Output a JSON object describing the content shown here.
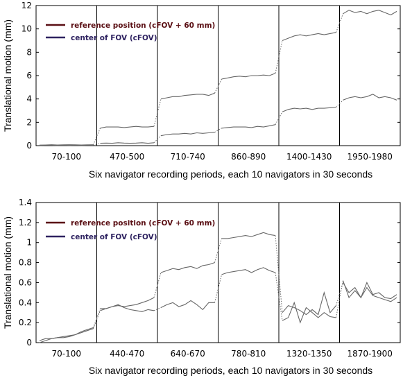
{
  "chart_data": [
    {
      "type": "line",
      "ylabel": "Translational motion (mm)",
      "xlabel": "Six navigator recording periods, each 10 navigators in 30 seconds",
      "ylim": [
        0,
        12
      ],
      "yticks": [
        "0",
        "2",
        "4",
        "6",
        "8",
        "10",
        "12"
      ],
      "categories": [
        "70-100",
        "470-500",
        "710-740",
        "860-890",
        "1400-1430",
        "1950-1980"
      ],
      "points_per_period": 10,
      "dotted_connectors": true,
      "legend_position": "top-left",
      "series": [
        {
          "name": "reference position (cFOV + 60 mm)",
          "color": "#5a0f14",
          "values": [
            [
              0.05,
              0.06,
              0.08,
              0.06,
              0.07,
              0.08,
              0.07,
              0.06,
              0.07,
              0.08
            ],
            [
              1.5,
              1.6,
              1.6,
              1.6,
              1.55,
              1.6,
              1.65,
              1.6,
              1.6,
              1.65
            ],
            [
              4.0,
              4.1,
              4.2,
              4.2,
              4.3,
              4.35,
              4.4,
              4.4,
              4.3,
              4.5
            ],
            [
              5.7,
              5.8,
              5.9,
              5.95,
              5.9,
              6.0,
              6.0,
              6.05,
              6.0,
              6.2
            ],
            [
              9.0,
              9.2,
              9.4,
              9.5,
              9.4,
              9.5,
              9.6,
              9.5,
              9.6,
              9.7
            ],
            [
              11.3,
              11.6,
              11.4,
              11.5,
              11.3,
              11.5,
              11.6,
              11.4,
              11.2,
              11.5
            ]
          ]
        },
        {
          "name": "center of FOV (cFOV)",
          "color": "#2e2260",
          "values": [
            [
              0.02,
              0.03,
              0.03,
              0.02,
              0.03,
              0.02,
              0.03,
              0.02,
              0.03,
              0.03
            ],
            [
              0.2,
              0.22,
              0.2,
              0.25,
              0.22,
              0.2,
              0.22,
              0.25,
              0.2,
              0.25
            ],
            [
              0.85,
              0.95,
              1.0,
              1.0,
              1.05,
              1.0,
              1.1,
              1.05,
              1.1,
              1.15
            ],
            [
              1.5,
              1.55,
              1.6,
              1.6,
              1.6,
              1.55,
              1.65,
              1.6,
              1.7,
              1.8
            ],
            [
              2.9,
              3.1,
              3.2,
              3.15,
              3.2,
              3.1,
              3.2,
              3.2,
              3.25,
              3.3
            ],
            [
              3.9,
              4.1,
              4.2,
              4.1,
              4.2,
              4.4,
              4.1,
              4.2,
              4.1,
              3.9
            ]
          ]
        }
      ]
    },
    {
      "type": "line",
      "ylabel": "Translational motion (mm)",
      "xlabel": "Six navigator recording periods, each 10 navigators in 30 seconds",
      "ylim": [
        0,
        1.4
      ],
      "yticks": [
        "0",
        "0.2",
        "0.4",
        "0.6",
        "0.8",
        "1",
        "1.2",
        "1.4"
      ],
      "categories": [
        "70-100",
        "440-470",
        "640-670",
        "780-810",
        "1320-1350",
        "1870-1900"
      ],
      "points_per_period": 10,
      "dotted_connectors": true,
      "legend_position": "top-left",
      "series": [
        {
          "name": "reference position (cFOV + 60 mm)",
          "color": "#5a0f14",
          "values": [
            [
              0.0,
              0.02,
              0.04,
              0.05,
              0.05,
              0.06,
              0.08,
              0.1,
              0.12,
              0.14
            ],
            [
              0.32,
              0.34,
              0.36,
              0.37,
              0.36,
              0.37,
              0.38,
              0.4,
              0.42,
              0.45
            ],
            [
              0.7,
              0.72,
              0.74,
              0.73,
              0.75,
              0.76,
              0.74,
              0.77,
              0.78,
              0.8
            ],
            [
              1.04,
              1.04,
              1.05,
              1.06,
              1.07,
              1.06,
              1.08,
              1.1,
              1.08,
              1.07
            ],
            [
              0.3,
              0.37,
              0.35,
              0.32,
              0.28,
              0.33,
              0.28,
              0.5,
              0.3,
              0.37
            ],
            [
              0.6,
              0.5,
              0.55,
              0.45,
              0.6,
              0.48,
              0.5,
              0.45,
              0.44,
              0.48
            ]
          ]
        },
        {
          "name": "center of FOV (cFOV)",
          "color": "#2e2260",
          "values": [
            [
              0.02,
              0.04,
              0.04,
              0.05,
              0.06,
              0.07,
              0.08,
              0.11,
              0.13,
              0.15
            ],
            [
              0.34,
              0.34,
              0.36,
              0.38,
              0.35,
              0.33,
              0.32,
              0.31,
              0.33,
              0.32
            ],
            [
              0.35,
              0.38,
              0.4,
              0.36,
              0.38,
              0.42,
              0.38,
              0.33,
              0.4,
              0.4
            ],
            [
              0.68,
              0.7,
              0.71,
              0.72,
              0.73,
              0.7,
              0.73,
              0.75,
              0.72,
              0.7
            ],
            [
              0.22,
              0.25,
              0.4,
              0.2,
              0.35,
              0.3,
              0.25,
              0.3,
              0.26,
              0.25
            ],
            [
              0.62,
              0.45,
              0.52,
              0.45,
              0.55,
              0.47,
              0.45,
              0.43,
              0.41,
              0.45
            ]
          ]
        }
      ]
    }
  ]
}
